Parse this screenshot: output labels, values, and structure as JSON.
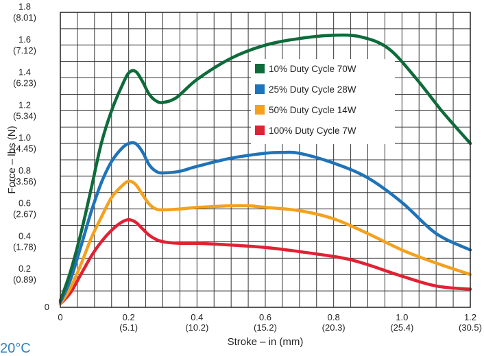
{
  "chart_data": {
    "type": "line",
    "title": "",
    "xlabel": "Stroke – in (mm)",
    "ylabel": "Force – lbs (N)",
    "xlim": [
      0,
      1.2
    ],
    "ylim": [
      0,
      1.8
    ],
    "grid": true,
    "legend_position": "top-right",
    "x_ticks": [
      {
        "value": 0,
        "label": "0",
        "sub": ""
      },
      {
        "value": 0.2,
        "label": "0.2",
        "sub": "(5.1)"
      },
      {
        "value": 0.4,
        "label": "0.4",
        "sub": "(10.2)"
      },
      {
        "value": 0.6,
        "label": "0.6",
        "sub": "(15.2)"
      },
      {
        "value": 0.8,
        "label": "0.8",
        "sub": "(20.3)"
      },
      {
        "value": 1.0,
        "label": "1.0",
        "sub": "(25.4)"
      },
      {
        "value": 1.2,
        "label": "1.2",
        "sub": "(30.5)"
      }
    ],
    "y_ticks": [
      {
        "value": 0,
        "label": "0",
        "sub": ""
      },
      {
        "value": 0.2,
        "label": "0.2",
        "sub": "(0.89)"
      },
      {
        "value": 0.4,
        "label": "0.4",
        "sub": "(1.78)"
      },
      {
        "value": 0.6,
        "label": "0.6",
        "sub": "(2.67)"
      },
      {
        "value": 0.8,
        "label": "0.8",
        "sub": "(3.56)"
      },
      {
        "value": 1.0,
        "label": "1.0",
        "sub": "(4.45)"
      },
      {
        "value": 1.2,
        "label": "1.2",
        "sub": "(5.34)"
      },
      {
        "value": 1.4,
        "label": "1.4",
        "sub": "(6.23)"
      },
      {
        "value": 1.6,
        "label": "1.6",
        "sub": "(7.12)"
      },
      {
        "value": 1.8,
        "label": "1.8",
        "sub": "(8.01)"
      }
    ],
    "series": [
      {
        "name": "10% Duty Cycle 70W",
        "color": "#0e6b3a",
        "x": [
          0,
          0.03,
          0.06,
          0.09,
          0.12,
          0.15,
          0.18,
          0.2,
          0.22,
          0.24,
          0.26,
          0.28,
          0.3,
          0.34,
          0.4,
          0.5,
          0.6,
          0.7,
          0.8,
          0.88,
          0.96,
          1.04,
          1.12,
          1.2
        ],
        "y": [
          0.04,
          0.22,
          0.45,
          0.72,
          1.0,
          1.2,
          1.35,
          1.43,
          1.44,
          1.38,
          1.3,
          1.26,
          1.25,
          1.28,
          1.39,
          1.52,
          1.6,
          1.64,
          1.66,
          1.65,
          1.58,
          1.4,
          1.19,
          1.0
        ]
      },
      {
        "name": "25% Duty Cycle 28W",
        "color": "#1f73b8",
        "x": [
          0,
          0.03,
          0.06,
          0.09,
          0.12,
          0.15,
          0.18,
          0.2,
          0.22,
          0.24,
          0.26,
          0.28,
          0.3,
          0.35,
          0.4,
          0.5,
          0.6,
          0.65,
          0.7,
          0.8,
          0.9,
          1.0,
          1.1,
          1.2
        ],
        "y": [
          0.03,
          0.17,
          0.37,
          0.58,
          0.76,
          0.89,
          0.97,
          1.0,
          1.0,
          0.95,
          0.87,
          0.83,
          0.82,
          0.83,
          0.86,
          0.91,
          0.94,
          0.945,
          0.94,
          0.88,
          0.79,
          0.64,
          0.45,
          0.35
        ]
      },
      {
        "name": "50% Duty Cycle 14W",
        "color": "#f3a11e",
        "x": [
          0,
          0.03,
          0.06,
          0.09,
          0.12,
          0.15,
          0.18,
          0.2,
          0.22,
          0.24,
          0.26,
          0.28,
          0.3,
          0.35,
          0.4,
          0.45,
          0.5,
          0.55,
          0.6,
          0.7,
          0.8,
          0.9,
          1.0,
          1.1,
          1.2
        ],
        "y": [
          0.02,
          0.12,
          0.26,
          0.42,
          0.55,
          0.67,
          0.74,
          0.77,
          0.75,
          0.69,
          0.63,
          0.6,
          0.595,
          0.6,
          0.61,
          0.615,
          0.62,
          0.62,
          0.61,
          0.59,
          0.54,
          0.45,
          0.35,
          0.27,
          0.2
        ]
      },
      {
        "name": "100% Duty Cycle 7W",
        "color": "#e02234",
        "x": [
          0,
          0.03,
          0.06,
          0.09,
          0.12,
          0.15,
          0.18,
          0.2,
          0.22,
          0.24,
          0.26,
          0.28,
          0.3,
          0.35,
          0.4,
          0.5,
          0.6,
          0.7,
          0.8,
          0.85,
          0.9,
          1.0,
          1.1,
          1.2
        ],
        "y": [
          0.02,
          0.09,
          0.2,
          0.31,
          0.4,
          0.47,
          0.52,
          0.535,
          0.52,
          0.48,
          0.44,
          0.415,
          0.4,
          0.39,
          0.39,
          0.38,
          0.365,
          0.34,
          0.31,
          0.29,
          0.26,
          0.19,
          0.13,
          0.11
        ]
      }
    ]
  },
  "footer_note": "20°C"
}
